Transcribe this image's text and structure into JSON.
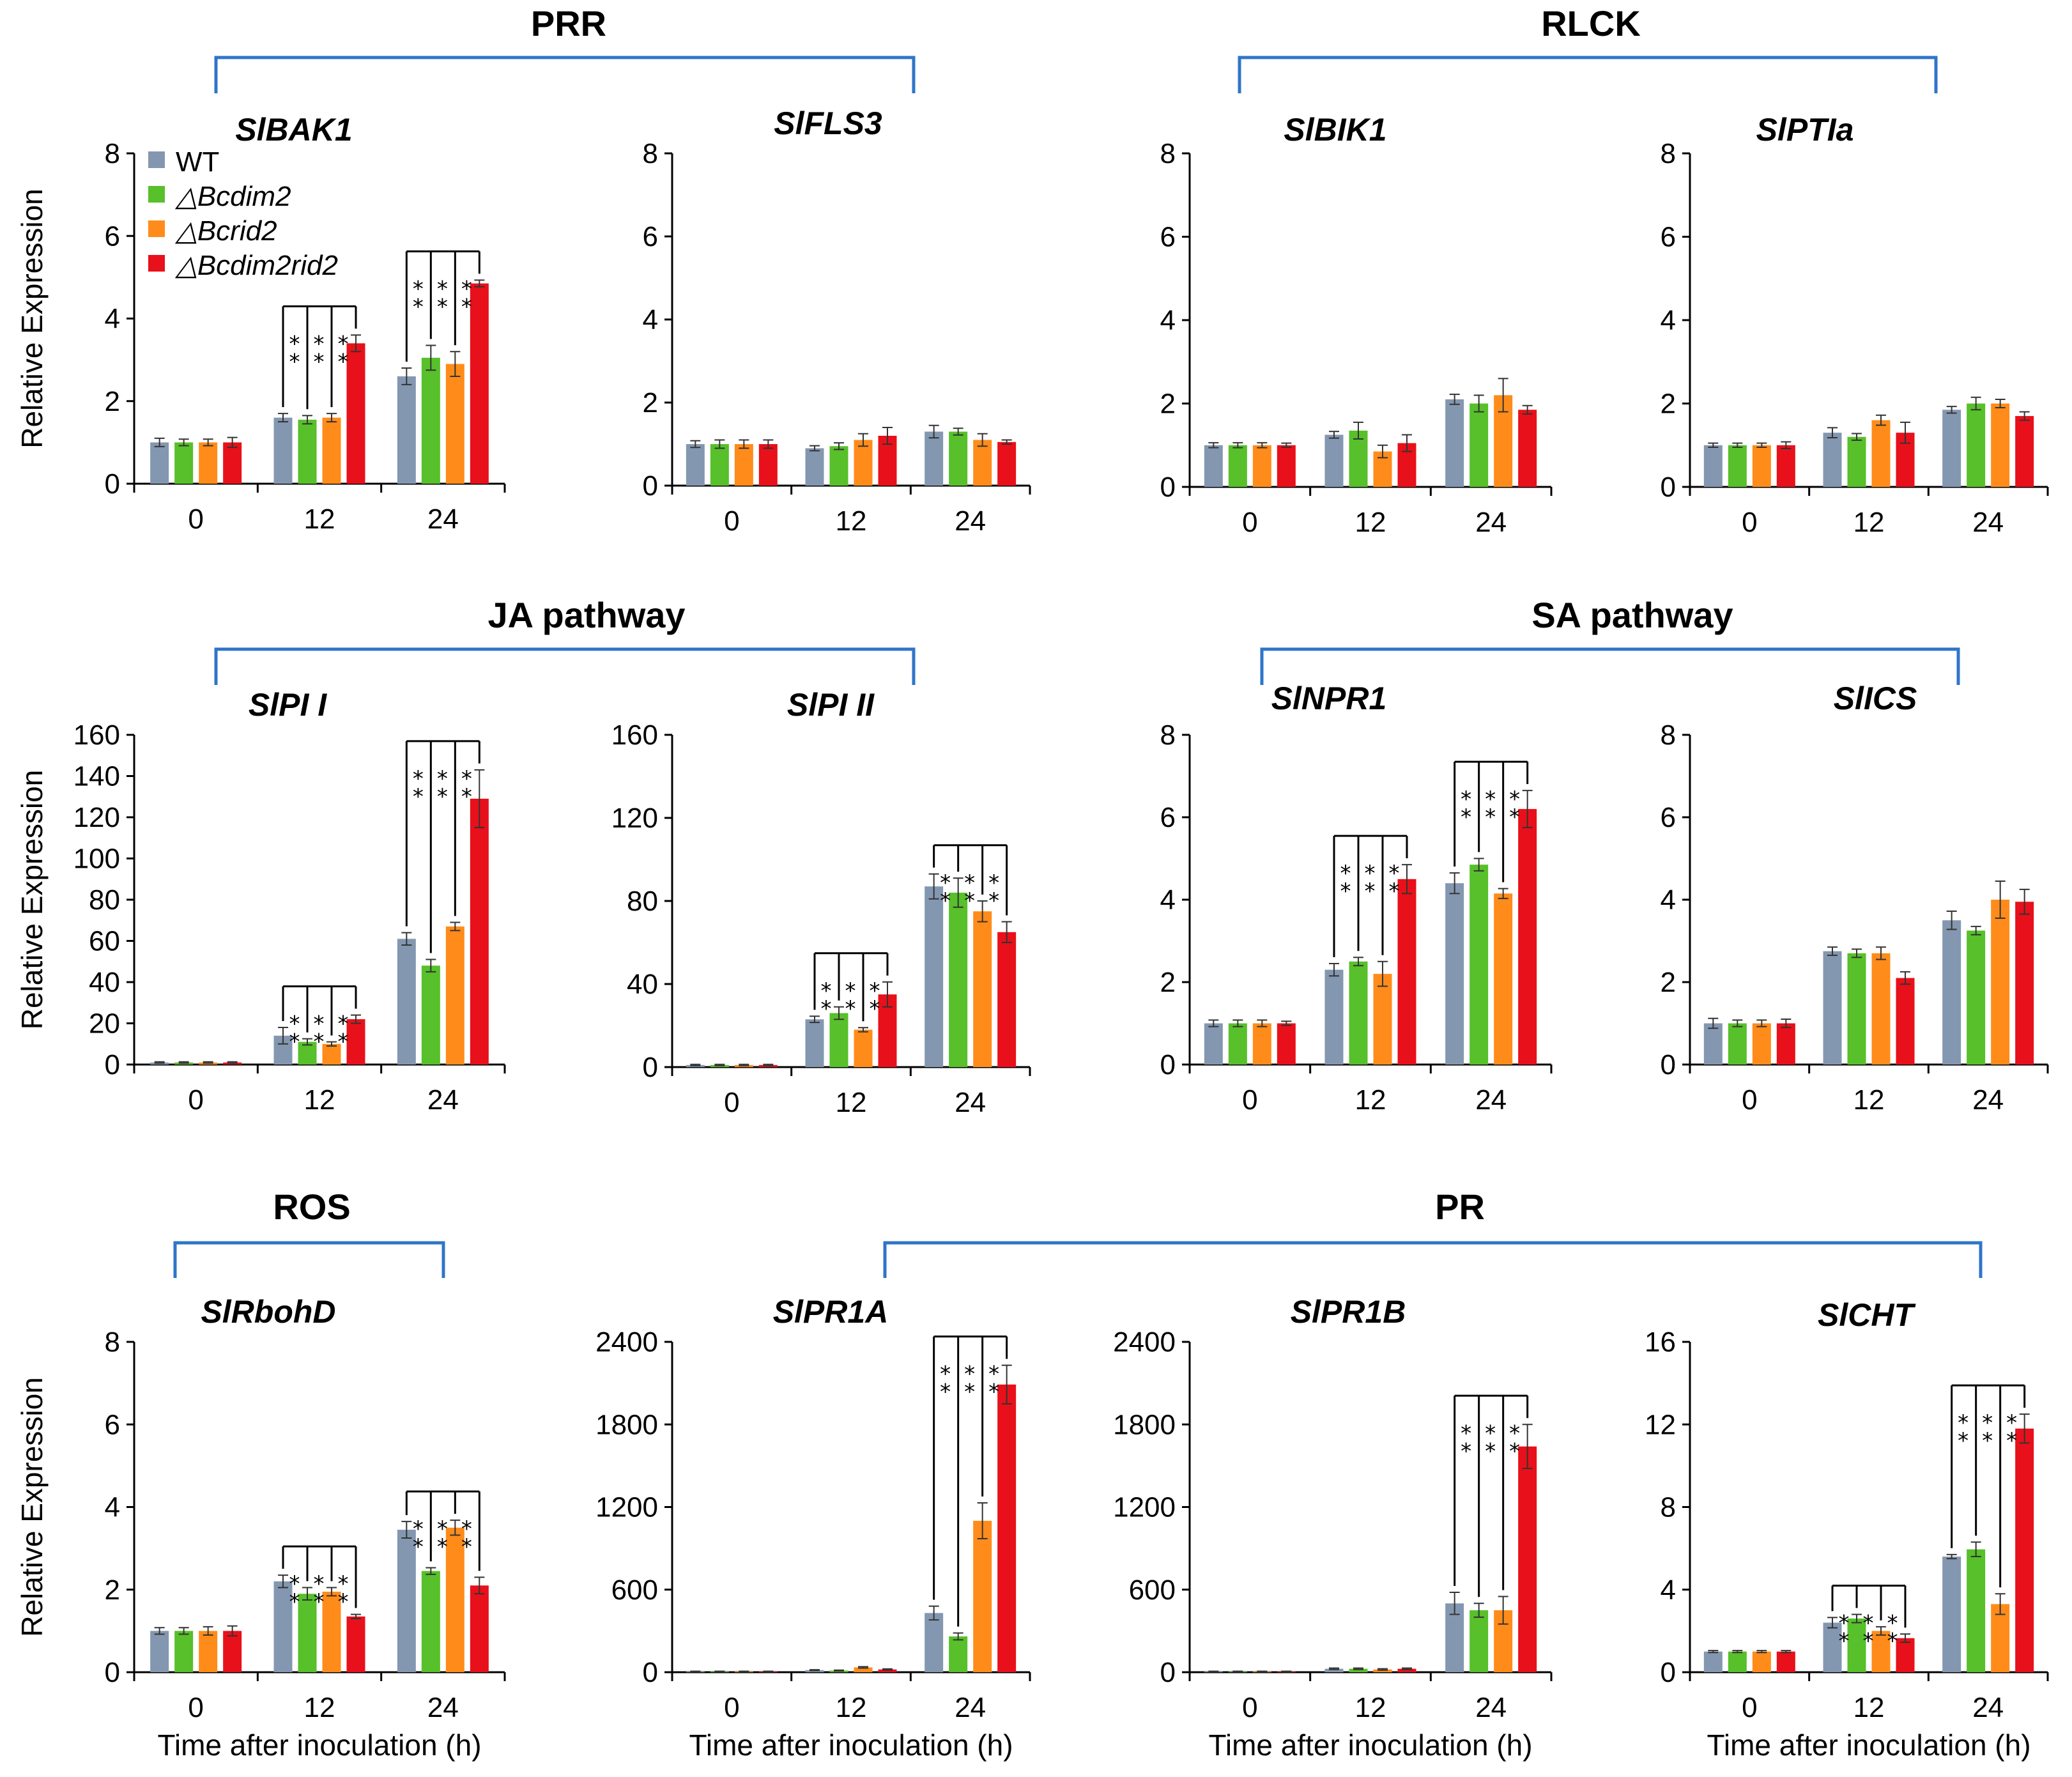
{
  "colors": {
    "series": [
      "#8497b0",
      "#57c02a",
      "#ff8c1a",
      "#e8101a"
    ],
    "bracket": "#2f75c9",
    "axis": "#000000"
  },
  "legend": [
    "WT",
    "△Bcdim2",
    "△Bcrid2",
    "△Bcdim2rid2"
  ],
  "groups": [
    {
      "label": "PRR"
    },
    {
      "label": "RLCK"
    },
    {
      "label": "JA pathway"
    },
    {
      "label": "SA pathway"
    },
    {
      "label": "ROS"
    },
    {
      "label": "PR"
    }
  ],
  "shared": {
    "categories": [
      "0",
      "12",
      "24"
    ],
    "ylabel": "Relative Expression",
    "xlabel": "Time after inoculation  (h)",
    "star": "*"
  },
  "chart_data": [
    {
      "type": "bar",
      "title": "SlBAK1",
      "categories": [
        "0",
        "12",
        "24"
      ],
      "ylim": [
        0,
        8
      ],
      "yticks": [
        0,
        2,
        4,
        6,
        8
      ],
      "series": [
        {
          "name": "WT",
          "values": [
            1.0,
            1.6,
            2.6
          ],
          "errors": [
            0.1,
            0.1,
            0.2
          ]
        },
        {
          "name": "△Bcdim2",
          "values": [
            1.0,
            1.55,
            3.05
          ],
          "errors": [
            0.08,
            0.1,
            0.3
          ]
        },
        {
          "name": "△Bcrid2",
          "values": [
            1.0,
            1.6,
            2.9
          ],
          "errors": [
            0.08,
            0.1,
            0.3
          ]
        },
        {
          "name": "△Bcdim2rid2",
          "values": [
            1.0,
            3.4,
            4.85
          ],
          "errors": [
            0.12,
            0.2,
            0.08
          ]
        }
      ],
      "significance": [
        {
          "category": 1,
          "targets": [
            1,
            2,
            3
          ]
        },
        {
          "category": 2,
          "targets": [
            1,
            2,
            3
          ]
        }
      ]
    },
    {
      "type": "bar",
      "title": "SlFLS3",
      "categories": [
        "0",
        "12",
        "24"
      ],
      "ylim": [
        0,
        8
      ],
      "yticks": [
        0,
        2,
        4,
        6,
        8
      ],
      "series": [
        {
          "name": "WT",
          "values": [
            1.0,
            0.9,
            1.3
          ],
          "errors": [
            0.08,
            0.06,
            0.15
          ]
        },
        {
          "name": "△Bcdim2",
          "values": [
            1.0,
            0.95,
            1.3
          ],
          "errors": [
            0.1,
            0.08,
            0.08
          ]
        },
        {
          "name": "△Bcrid2",
          "values": [
            1.0,
            1.1,
            1.1
          ],
          "errors": [
            0.1,
            0.15,
            0.15
          ]
        },
        {
          "name": "△Bcdim2rid2",
          "values": [
            1.0,
            1.2,
            1.05
          ],
          "errors": [
            0.1,
            0.2,
            0.05
          ]
        }
      ],
      "significance": []
    },
    {
      "type": "bar",
      "title": "SlBIK1",
      "categories": [
        "0",
        "12",
        "24"
      ],
      "ylim": [
        0,
        8
      ],
      "yticks": [
        0,
        2,
        4,
        6,
        8
      ],
      "series": [
        {
          "name": "WT",
          "values": [
            1.0,
            1.25,
            2.1
          ],
          "errors": [
            0.06,
            0.08,
            0.12
          ]
        },
        {
          "name": "△Bcdim2",
          "values": [
            1.0,
            1.35,
            2.0
          ],
          "errors": [
            0.06,
            0.2,
            0.2
          ]
        },
        {
          "name": "△Bcrid2",
          "values": [
            1.0,
            0.85,
            2.2
          ],
          "errors": [
            0.06,
            0.15,
            0.4
          ]
        },
        {
          "name": "△Bcdim2rid2",
          "values": [
            1.0,
            1.05,
            1.85
          ],
          "errors": [
            0.05,
            0.2,
            0.1
          ]
        }
      ],
      "significance": []
    },
    {
      "type": "bar",
      "title": "SlPTIa",
      "categories": [
        "0",
        "12",
        "24"
      ],
      "ylim": [
        0,
        8
      ],
      "yticks": [
        0,
        2,
        4,
        6,
        8
      ],
      "series": [
        {
          "name": "WT",
          "values": [
            1.0,
            1.3,
            1.85
          ],
          "errors": [
            0.05,
            0.12,
            0.08
          ]
        },
        {
          "name": "△Bcdim2",
          "values": [
            1.0,
            1.2,
            2.0
          ],
          "errors": [
            0.05,
            0.08,
            0.15
          ]
        },
        {
          "name": "△Bcrid2",
          "values": [
            1.0,
            1.6,
            2.0
          ],
          "errors": [
            0.05,
            0.12,
            0.1
          ]
        },
        {
          "name": "△Bcdim2rid2",
          "values": [
            1.0,
            1.3,
            1.7
          ],
          "errors": [
            0.08,
            0.25,
            0.1
          ]
        }
      ],
      "significance": []
    },
    {
      "type": "bar",
      "title": "SlPI I",
      "categories": [
        "0",
        "12",
        "24"
      ],
      "ylim": [
        0,
        160
      ],
      "yticks": [
        0,
        20,
        40,
        60,
        80,
        100,
        120,
        140,
        160
      ],
      "series": [
        {
          "name": "WT",
          "values": [
            1,
            14,
            61
          ],
          "errors": [
            0.3,
            4,
            3
          ]
        },
        {
          "name": "△Bcdim2",
          "values": [
            1,
            11,
            48
          ],
          "errors": [
            0.3,
            1.5,
            3
          ]
        },
        {
          "name": "△Bcrid2",
          "values": [
            1,
            10,
            67
          ],
          "errors": [
            0.3,
            1,
            2
          ]
        },
        {
          "name": "△Bcdim2rid2",
          "values": [
            1,
            22,
            129
          ],
          "errors": [
            0.3,
            2,
            14
          ]
        }
      ],
      "significance": [
        {
          "category": 1,
          "targets": [
            1,
            2,
            3
          ]
        },
        {
          "category": 2,
          "targets": [
            1,
            2,
            3
          ]
        }
      ]
    },
    {
      "type": "bar",
      "title": "SlPI II",
      "categories": [
        "0",
        "12",
        "24"
      ],
      "ylim": [
        0,
        160
      ],
      "yticks": [
        0,
        40,
        80,
        120,
        160
      ],
      "series": [
        {
          "name": "WT",
          "values": [
            1,
            23,
            87
          ],
          "errors": [
            0.3,
            1.5,
            6
          ]
        },
        {
          "name": "△Bcdim2",
          "values": [
            1,
            26,
            84
          ],
          "errors": [
            0.3,
            3,
            7
          ]
        },
        {
          "name": "△Bcrid2",
          "values": [
            1,
            18,
            75
          ],
          "errors": [
            0.3,
            1,
            5
          ]
        },
        {
          "name": "△Bcdim2rid2",
          "values": [
            1,
            35,
            65
          ],
          "errors": [
            0.3,
            6,
            5
          ]
        }
      ],
      "significance": [
        {
          "category": 1,
          "targets": [
            1,
            2,
            3
          ]
        },
        {
          "category": 2,
          "targets": [
            1,
            2,
            3
          ]
        }
      ]
    },
    {
      "type": "bar",
      "title": "SlNPR1",
      "categories": [
        "0",
        "12",
        "24"
      ],
      "ylim": [
        0,
        8
      ],
      "yticks": [
        0,
        2,
        4,
        6,
        8
      ],
      "series": [
        {
          "name": "WT",
          "values": [
            1.0,
            2.3,
            4.4
          ],
          "errors": [
            0.08,
            0.15,
            0.25
          ]
        },
        {
          "name": "△Bcdim2",
          "values": [
            1.0,
            2.5,
            4.85
          ],
          "errors": [
            0.08,
            0.1,
            0.15
          ]
        },
        {
          "name": "△Bcrid2",
          "values": [
            1.0,
            2.2,
            4.15
          ],
          "errors": [
            0.08,
            0.3,
            0.12
          ]
        },
        {
          "name": "△Bcdim2rid2",
          "values": [
            1.0,
            4.5,
            6.2
          ],
          "errors": [
            0.05,
            0.35,
            0.45
          ]
        }
      ],
      "significance": [
        {
          "category": 1,
          "targets": [
            1,
            2,
            3
          ]
        },
        {
          "category": 2,
          "targets": [
            1,
            2,
            3
          ]
        }
      ]
    },
    {
      "type": "bar",
      "title": "SlICS",
      "categories": [
        "0",
        "12",
        "24"
      ],
      "ylim": [
        0,
        8
      ],
      "yticks": [
        0,
        2,
        4,
        6,
        8
      ],
      "series": [
        {
          "name": "WT",
          "values": [
            1.0,
            2.75,
            3.5
          ],
          "errors": [
            0.12,
            0.1,
            0.22
          ]
        },
        {
          "name": "△Bcdim2",
          "values": [
            1.0,
            2.7,
            3.25
          ],
          "errors": [
            0.08,
            0.1,
            0.1
          ]
        },
        {
          "name": "△Bcrid2",
          "values": [
            1.0,
            2.7,
            4.0
          ],
          "errors": [
            0.08,
            0.15,
            0.45
          ]
        },
        {
          "name": "△Bcdim2rid2",
          "values": [
            1.0,
            2.1,
            3.95
          ],
          "errors": [
            0.1,
            0.15,
            0.3
          ]
        }
      ],
      "significance": []
    },
    {
      "type": "bar",
      "title": "SlRbohD",
      "categories": [
        "0",
        "12",
        "24"
      ],
      "ylim": [
        0,
        8
      ],
      "yticks": [
        0,
        2,
        4,
        6,
        8
      ],
      "series": [
        {
          "name": "WT",
          "values": [
            1.0,
            2.2,
            3.45
          ],
          "errors": [
            0.08,
            0.15,
            0.2
          ]
        },
        {
          "name": "△Bcdim2",
          "values": [
            1.0,
            1.9,
            2.45
          ],
          "errors": [
            0.08,
            0.15,
            0.08
          ]
        },
        {
          "name": "△Bcrid2",
          "values": [
            1.0,
            1.95,
            3.5
          ],
          "errors": [
            0.1,
            0.1,
            0.18
          ]
        },
        {
          "name": "△Bcdim2rid2",
          "values": [
            1.0,
            1.35,
            2.1
          ],
          "errors": [
            0.12,
            0.05,
            0.2
          ]
        }
      ],
      "significance": [
        {
          "category": 1,
          "targets": [
            1,
            2,
            3
          ]
        },
        {
          "category": 2,
          "targets": [
            1,
            2,
            3
          ]
        }
      ]
    },
    {
      "type": "bar",
      "title": "SlPR1A",
      "categories": [
        "0",
        "12",
        "24"
      ],
      "ylim": [
        0,
        2400
      ],
      "yticks": [
        0,
        600,
        1200,
        1800,
        2400
      ],
      "series": [
        {
          "name": "WT",
          "values": [
            5,
            15,
            430
          ],
          "errors": [
            2,
            3,
            50
          ]
        },
        {
          "name": "△Bcdim2",
          "values": [
            5,
            12,
            260
          ],
          "errors": [
            2,
            3,
            25
          ]
        },
        {
          "name": "△Bcrid2",
          "values": [
            5,
            35,
            1100
          ],
          "errors": [
            2,
            5,
            130
          ]
        },
        {
          "name": "△Bcdim2rid2",
          "values": [
            5,
            20,
            2090
          ],
          "errors": [
            2,
            4,
            140
          ]
        }
      ],
      "significance": [
        {
          "category": 2,
          "targets": [
            1,
            2,
            3
          ]
        }
      ]
    },
    {
      "type": "bar",
      "title": "SlPR1B",
      "categories": [
        "0",
        "12",
        "24"
      ],
      "ylim": [
        0,
        2400
      ],
      "yticks": [
        0,
        600,
        1200,
        1800,
        2400
      ],
      "series": [
        {
          "name": "WT",
          "values": [
            5,
            25,
            500
          ],
          "errors": [
            2,
            5,
            80
          ]
        },
        {
          "name": "△Bcdim2",
          "values": [
            5,
            25,
            450
          ],
          "errors": [
            2,
            5,
            50
          ]
        },
        {
          "name": "△Bcrid2",
          "values": [
            5,
            20,
            450
          ],
          "errors": [
            2,
            5,
            100
          ]
        },
        {
          "name": "△Bcdim2rid2",
          "values": [
            5,
            25,
            1640
          ],
          "errors": [
            2,
            5,
            160
          ]
        }
      ],
      "significance": [
        {
          "category": 2,
          "targets": [
            1,
            2,
            3
          ]
        }
      ]
    },
    {
      "type": "bar",
      "title": "SlCHT",
      "categories": [
        "0",
        "12",
        "24"
      ],
      "ylim": [
        0,
        16
      ],
      "yticks": [
        0,
        4,
        8,
        12,
        16
      ],
      "series": [
        {
          "name": "WT",
          "values": [
            1.0,
            2.4,
            5.6
          ],
          "errors": [
            0.05,
            0.25,
            0.1
          ]
        },
        {
          "name": "△Bcdim2",
          "values": [
            1.0,
            2.6,
            5.95
          ],
          "errors": [
            0.05,
            0.2,
            0.35
          ]
        },
        {
          "name": "△Bcrid2",
          "values": [
            1.0,
            2.0,
            3.3
          ],
          "errors": [
            0.05,
            0.2,
            0.5
          ]
        },
        {
          "name": "△Bcdim2rid2",
          "values": [
            1.0,
            1.65,
            11.8
          ],
          "errors": [
            0.05,
            0.2,
            0.7
          ]
        }
      ],
      "significance": [
        {
          "category": 1,
          "targets": [
            1,
            2,
            3
          ]
        },
        {
          "category": 2,
          "targets": [
            1,
            2,
            3
          ]
        }
      ]
    }
  ]
}
